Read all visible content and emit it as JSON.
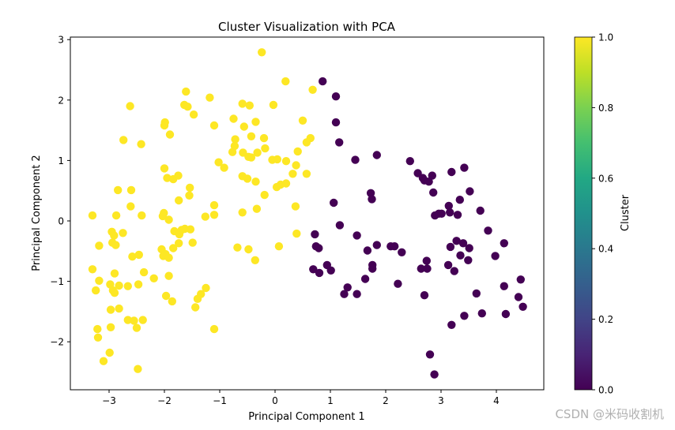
{
  "chart_data": {
    "type": "scatter",
    "title": "Cluster Visualization with PCA",
    "xlabel": "Principal Component 1",
    "ylabel": "Principal Component 2",
    "xlim": [
      -3.7,
      4.85
    ],
    "ylim": [
      -2.8,
      3.05
    ],
    "xticks": [
      -3,
      -2,
      -1,
      0,
      1,
      2,
      3,
      4
    ],
    "yticks": [
      -2,
      -1,
      0,
      1,
      2,
      3
    ],
    "grid": false,
    "colormap": "viridis",
    "colorbar": {
      "label": "Cluster",
      "range": [
        0.0,
        1.0
      ],
      "ticks": [
        "0.0",
        "0.2",
        "0.4",
        "0.6",
        "0.8",
        "1.0"
      ]
    },
    "series": [
      {
        "name": "Cluster 1",
        "cluster_value": 1,
        "color": "#fde725",
        "points": [
          [
            -0.24,
            2.79
          ],
          [
            0.19,
            2.31
          ],
          [
            0.68,
            2.17
          ],
          [
            -2.62,
            1.9
          ],
          [
            -1.61,
            2.14
          ],
          [
            -1.64,
            1.92
          ],
          [
            -1.58,
            1.89
          ],
          [
            -1.47,
            1.76
          ],
          [
            -1.18,
            2.04
          ],
          [
            -0.59,
            1.94
          ],
          [
            -0.46,
            1.91
          ],
          [
            -0.03,
            1.92
          ],
          [
            -1.99,
            1.63
          ],
          [
            -2.0,
            1.58
          ],
          [
            -1.9,
            1.43
          ],
          [
            -1.1,
            1.58
          ],
          [
            -0.75,
            1.69
          ],
          [
            -0.56,
            1.56
          ],
          [
            -0.35,
            1.64
          ],
          [
            0.5,
            1.66
          ],
          [
            -2.74,
            1.34
          ],
          [
            -2.42,
            1.27
          ],
          [
            -0.72,
            1.35
          ],
          [
            -0.43,
            1.4
          ],
          [
            -0.2,
            1.37
          ],
          [
            0.64,
            1.37
          ],
          [
            0.57,
            1.3
          ],
          [
            0.41,
            1.15
          ],
          [
            -0.77,
            1.14
          ],
          [
            -0.73,
            1.24
          ],
          [
            -0.58,
            1.13
          ],
          [
            -0.48,
            1.06
          ],
          [
            -0.43,
            1.05
          ],
          [
            -0.32,
            1.13
          ],
          [
            -0.18,
            1.2
          ],
          [
            -0.05,
            1.01
          ],
          [
            0.04,
            1.02
          ],
          [
            0.2,
            0.99
          ],
          [
            0.38,
            0.92
          ],
          [
            -1.02,
            0.97
          ],
          [
            -0.92,
            0.88
          ],
          [
            -2.0,
            0.87
          ],
          [
            -1.95,
            0.71
          ],
          [
            -1.84,
            0.69
          ],
          [
            -1.75,
            0.75
          ],
          [
            -0.59,
            0.74
          ],
          [
            -0.5,
            0.7
          ],
          [
            -0.35,
            0.65
          ],
          [
            -0.19,
            0.43
          ],
          [
            0.03,
            0.56
          ],
          [
            0.32,
            0.78
          ],
          [
            0.57,
            0.78
          ],
          [
            -2.84,
            0.51
          ],
          [
            -2.6,
            0.51
          ],
          [
            -1.54,
            0.55
          ],
          [
            -1.55,
            0.42
          ],
          [
            -2.61,
            0.24
          ],
          [
            -1.74,
            0.34
          ],
          [
            -1.1,
            0.26
          ],
          [
            -0.33,
            0.2
          ],
          [
            -0.59,
            0.14
          ],
          [
            0.1,
            0.6
          ],
          [
            0.2,
            0.62
          ],
          [
            0.37,
            0.24
          ],
          [
            -3.3,
            0.09
          ],
          [
            -2.87,
            0.09
          ],
          [
            -2.41,
            0.09
          ],
          [
            -2.01,
            0.13
          ],
          [
            -1.26,
            0.07
          ],
          [
            -1.1,
            0.1
          ],
          [
            -2.03,
            0.08
          ],
          [
            -1.92,
            0.02
          ],
          [
            -3.18,
            -0.41
          ],
          [
            -2.95,
            -0.18
          ],
          [
            -2.91,
            -0.24
          ],
          [
            -2.75,
            -0.2
          ],
          [
            -2.94,
            -0.36
          ],
          [
            -2.88,
            -0.4
          ],
          [
            -1.82,
            -0.17
          ],
          [
            -1.73,
            -0.22
          ],
          [
            -1.69,
            -0.15
          ],
          [
            -1.63,
            -0.13
          ],
          [
            -1.53,
            -0.14
          ],
          [
            -1.74,
            -0.37
          ],
          [
            -1.49,
            -0.36
          ],
          [
            -2.05,
            -0.47
          ],
          [
            -1.98,
            -0.55
          ],
          [
            -2.02,
            -0.58
          ],
          [
            -1.92,
            -0.61
          ],
          [
            -1.84,
            -0.45
          ],
          [
            -2.58,
            -0.59
          ],
          [
            -2.46,
            -0.56
          ],
          [
            -3.3,
            -0.8
          ],
          [
            -2.9,
            -0.87
          ],
          [
            -2.37,
            -0.85
          ],
          [
            -2.19,
            -0.95
          ],
          [
            -1.92,
            -0.91
          ],
          [
            -0.68,
            -0.44
          ],
          [
            -0.48,
            -0.47
          ],
          [
            -0.36,
            -0.65
          ],
          [
            0.07,
            -0.42
          ],
          [
            0.39,
            -0.21
          ],
          [
            -3.18,
            -0.99
          ],
          [
            -3.24,
            -1.15
          ],
          [
            -2.98,
            -1.05
          ],
          [
            -2.9,
            -1.19
          ],
          [
            -2.93,
            -1.15
          ],
          [
            -2.82,
            -1.07
          ],
          [
            -2.66,
            -1.08
          ],
          [
            -2.47,
            -1.05
          ],
          [
            -1.97,
            -1.24
          ],
          [
            -1.86,
            -1.33
          ],
          [
            -1.25,
            -1.11
          ],
          [
            -1.34,
            -1.21
          ],
          [
            -1.4,
            -1.29
          ],
          [
            -1.44,
            -1.43
          ],
          [
            -2.97,
            -1.47
          ],
          [
            -2.82,
            -1.45
          ],
          [
            -2.66,
            -1.64
          ],
          [
            -2.55,
            -1.65
          ],
          [
            -2.39,
            -1.64
          ],
          [
            -2.5,
            -1.77
          ],
          [
            -3.21,
            -1.79
          ],
          [
            -3.2,
            -1.93
          ],
          [
            -2.97,
            -1.76
          ],
          [
            -1.1,
            -1.79
          ],
          [
            -2.99,
            -2.18
          ],
          [
            -3.1,
            -2.32
          ],
          [
            -2.48,
            -2.45
          ]
        ]
      },
      {
        "name": "Cluster 0",
        "cluster_value": 0,
        "color": "#440154",
        "points": [
          [
            0.86,
            2.31
          ],
          [
            1.1,
            2.06
          ],
          [
            1.1,
            1.63
          ],
          [
            1.16,
            1.3
          ],
          [
            1.45,
            1.01
          ],
          [
            1.84,
            1.09
          ],
          [
            1.73,
            0.46
          ],
          [
            1.75,
            0.36
          ],
          [
            1.06,
            0.3
          ],
          [
            1.17,
            -0.07
          ],
          [
            0.72,
            -0.22
          ],
          [
            0.74,
            -0.42
          ],
          [
            0.79,
            -0.45
          ],
          [
            1.48,
            -0.24
          ],
          [
            0.94,
            -0.73
          ],
          [
            0.69,
            -0.8
          ],
          [
            0.8,
            -0.86
          ],
          [
            1.01,
            -0.82
          ],
          [
            1.84,
            -0.4
          ],
          [
            2.09,
            -0.42
          ],
          [
            2.16,
            -0.42
          ],
          [
            2.29,
            -0.52
          ],
          [
            1.67,
            -0.49
          ],
          [
            1.76,
            -0.73
          ],
          [
            1.76,
            -0.79
          ],
          [
            1.63,
            -0.96
          ],
          [
            1.31,
            -1.1
          ],
          [
            1.48,
            -1.21
          ],
          [
            1.25,
            -1.21
          ],
          [
            2.22,
            -1.04
          ],
          [
            2.44,
            0.99
          ],
          [
            2.58,
            0.79
          ],
          [
            2.67,
            0.71
          ],
          [
            2.7,
            0.67
          ],
          [
            2.78,
            0.65
          ],
          [
            2.84,
            0.75
          ],
          [
            2.86,
            0.47
          ],
          [
            3.19,
            0.81
          ],
          [
            3.42,
            0.88
          ],
          [
            3.34,
            0.35
          ],
          [
            3.52,
            0.49
          ],
          [
            3.71,
            0.17
          ],
          [
            2.89,
            0.09
          ],
          [
            2.96,
            0.12
          ],
          [
            3.01,
            0.12
          ],
          [
            3.14,
            0.25
          ],
          [
            3.16,
            0.14
          ],
          [
            3.3,
            0.1
          ],
          [
            3.28,
            -0.33
          ],
          [
            3.17,
            -0.43
          ],
          [
            3.4,
            -0.37
          ],
          [
            3.85,
            -0.16
          ],
          [
            3.35,
            -0.57
          ],
          [
            3.51,
            -0.45
          ],
          [
            3.98,
            -0.58
          ],
          [
            4.14,
            -0.37
          ],
          [
            2.74,
            -0.66
          ],
          [
            2.64,
            -0.79
          ],
          [
            2.75,
            -0.79
          ],
          [
            3.13,
            -0.73
          ],
          [
            3.24,
            -0.83
          ],
          [
            3.49,
            -0.65
          ],
          [
            2.7,
            -1.23
          ],
          [
            3.64,
            -1.2
          ],
          [
            4.14,
            -1.08
          ],
          [
            4.44,
            -0.97
          ],
          [
            4.4,
            -1.26
          ],
          [
            4.48,
            -1.42
          ],
          [
            3.42,
            -1.57
          ],
          [
            3.74,
            -1.53
          ],
          [
            4.17,
            -1.54
          ],
          [
            3.19,
            -1.72
          ],
          [
            2.8,
            -2.21
          ],
          [
            2.88,
            -2.54
          ]
        ]
      }
    ]
  },
  "watermark": "CSDN @米码收割机"
}
